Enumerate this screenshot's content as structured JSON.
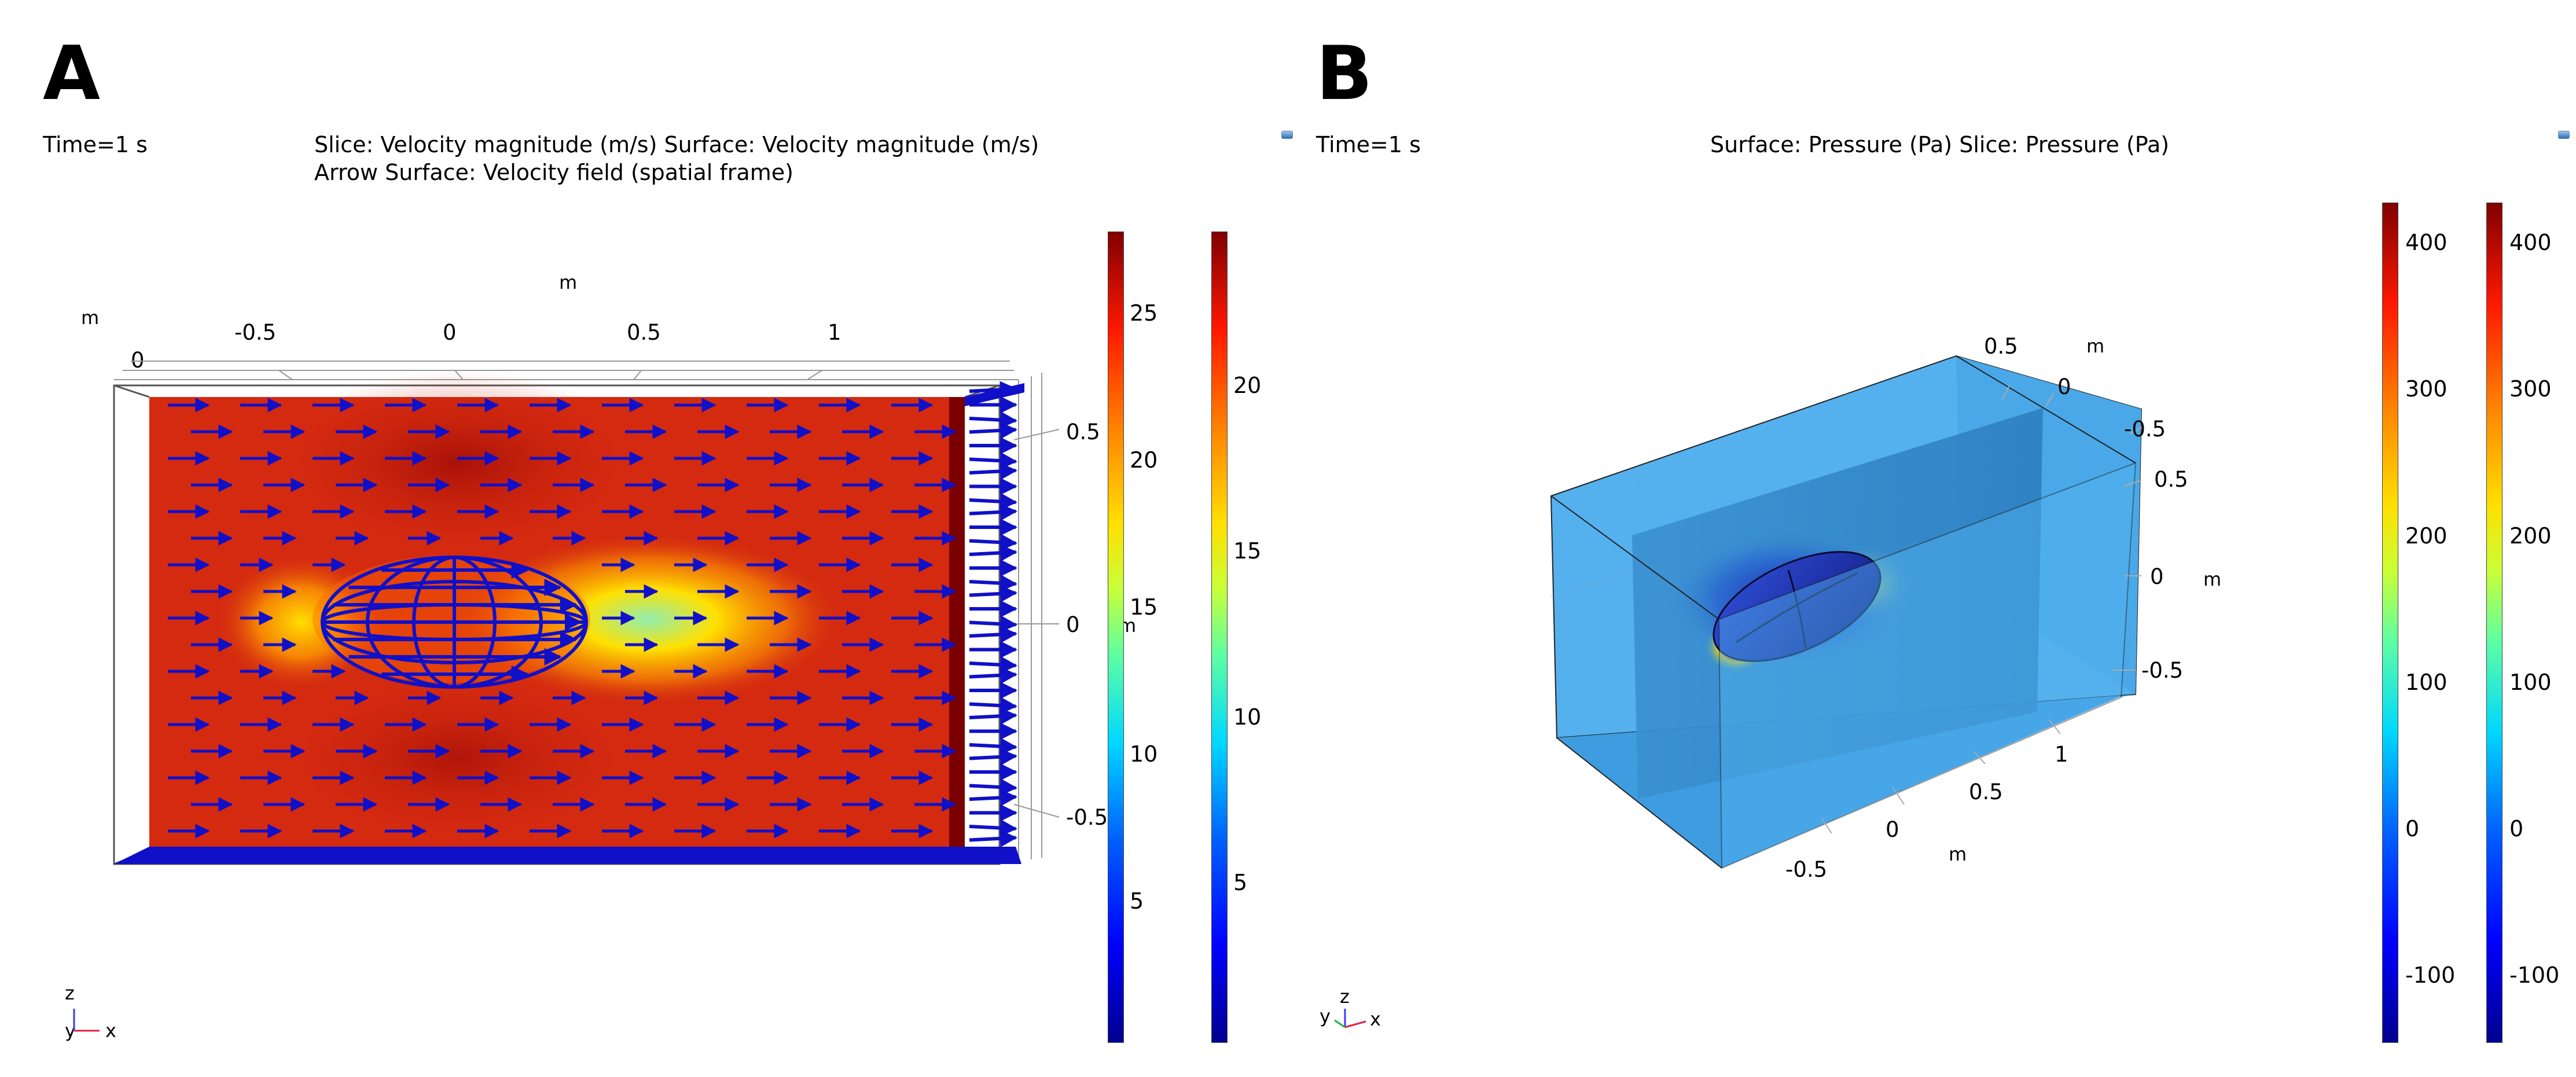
{
  "panelA": {
    "label": "A",
    "time": "Time=1 s",
    "title_line1": "Slice: Velocity magnitude (m/s)  Surface: Velocity magnitude (m/s)",
    "title_line2": "Arrow Surface: Velocity field (spatial frame)",
    "top_axis_unit": "m",
    "left_axis_unit": "m",
    "top_ticks": [
      "-0.5",
      "0",
      "0.5",
      "1"
    ],
    "zero_label": "0",
    "right_ticks": [
      "0.5",
      "0",
      "-0.5"
    ],
    "right_axis_unit": "m",
    "colorbar1_ticks": [
      "25",
      "20",
      "15",
      "10",
      "5"
    ],
    "colorbar2_ticks": [
      "20",
      "15",
      "10",
      "5"
    ],
    "triad": {
      "z": "z",
      "y": "y",
      "x": "x"
    }
  },
  "panelB": {
    "label": "B",
    "time": "Time=1 s",
    "title": "Surface: Pressure (Pa)  Slice: Pressure (Pa)",
    "ticks_top": [
      "0.5",
      "0",
      "-0.5"
    ],
    "unit_top": "m",
    "ticks_right": [
      "0.5",
      "0",
      "-0.5"
    ],
    "unit_right": "m",
    "ticks_bottom": [
      "-0.5",
      "0",
      "0.5",
      "1"
    ],
    "unit_bottom": "m",
    "colorbar1_ticks": [
      "400",
      "300",
      "200",
      "100",
      "0",
      "-100"
    ],
    "colorbar2_ticks": [
      "400",
      "300",
      "200",
      "100",
      "0",
      "-100"
    ],
    "triad": {
      "z": "z",
      "y": "y",
      "x": "x"
    }
  },
  "colors": {
    "arrow": "#1010c8",
    "field_red": "#d42a10",
    "box_blue": "#4aa8e8"
  }
}
